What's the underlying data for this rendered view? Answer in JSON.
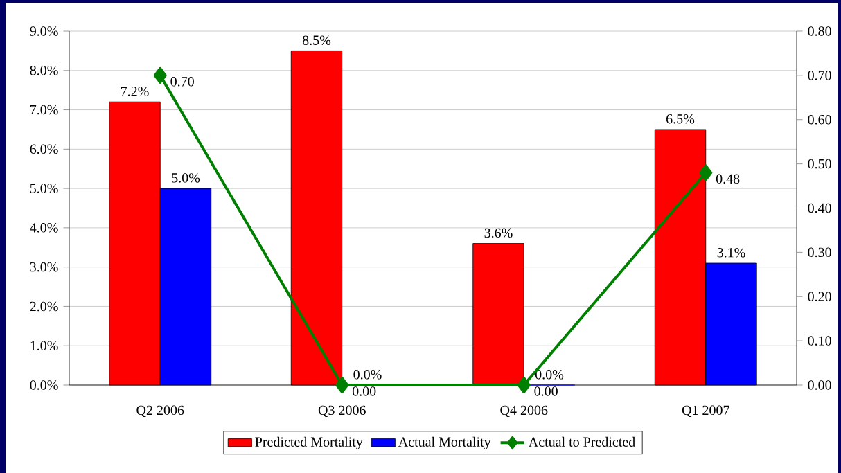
{
  "chart_data": {
    "type": "bar",
    "categories": [
      "Q2 2006",
      "Q3 2006",
      "Q4 2006",
      "Q1 2007"
    ],
    "series": [
      {
        "name": "Predicted Mortality",
        "color": "#ff0000",
        "values": [
          7.2,
          8.5,
          3.6,
          6.5
        ],
        "value_labels": [
          "7.2%",
          "8.5%",
          "3.6%",
          "6.5%"
        ]
      },
      {
        "name": "Actual Mortality",
        "color": "#0000ff",
        "values": [
          5.0,
          0.0,
          0.0,
          3.1
        ],
        "value_labels": [
          "5.0%",
          "0.0%",
          "0.0%",
          "3.1%"
        ]
      },
      {
        "name": "Actual to Predicted",
        "type": "line",
        "axis": "y2",
        "color": "#008000",
        "values": [
          0.7,
          0.0,
          0.0,
          0.48
        ],
        "value_labels": [
          "0.70",
          "0.00",
          "0.00",
          "0.48"
        ],
        "marker": "diamond"
      }
    ],
    "ylim": [
      0,
      9
    ],
    "yticks": [
      {
        "value": 0,
        "label": "0.0%"
      },
      {
        "value": 1,
        "label": "1.0%"
      },
      {
        "value": 2,
        "label": "2.0%"
      },
      {
        "value": 3,
        "label": "3.0%"
      },
      {
        "value": 4,
        "label": "4.0%"
      },
      {
        "value": 5,
        "label": "5.0%"
      },
      {
        "value": 6,
        "label": "6.0%"
      },
      {
        "value": 7,
        "label": "7.0%"
      },
      {
        "value": 8,
        "label": "8.0%"
      },
      {
        "value": 9,
        "label": "9.0%"
      }
    ],
    "y2lim": [
      0,
      0.8
    ],
    "y2ticks": [
      {
        "value": 0,
        "label": "0.00"
      },
      {
        "value": 0.1,
        "label": "0.10"
      },
      {
        "value": 0.2,
        "label": "0.20"
      },
      {
        "value": 0.3,
        "label": "0.30"
      },
      {
        "value": 0.4,
        "label": "0.40"
      },
      {
        "value": 0.5,
        "label": "0.50"
      },
      {
        "value": 0.6,
        "label": "0.60"
      },
      {
        "value": 0.7,
        "label": "0.70"
      },
      {
        "value": 0.8,
        "label": "0.80"
      }
    ],
    "grid": "y",
    "legend": "bottom"
  }
}
